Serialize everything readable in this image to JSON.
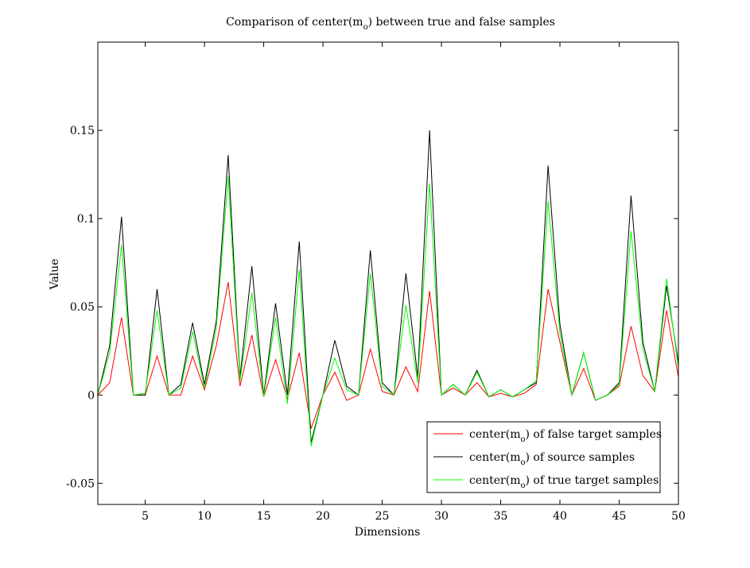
{
  "chart_data": {
    "type": "line",
    "title": {
      "before": "Comparison of center(m",
      "sub": "o",
      "after": ") between true and false samples"
    },
    "xlabel": "Dimensions",
    "ylabel": "Value",
    "xlim": [
      1,
      50
    ],
    "ylim": [
      -0.062,
      0.2
    ],
    "x_ticks": [
      5,
      10,
      15,
      20,
      25,
      30,
      35,
      40,
      45,
      50
    ],
    "y_ticks": [
      -0.05,
      0,
      0.05,
      0.1,
      0.15
    ],
    "y_tick_labels": [
      "-0.05",
      "0",
      "0.05",
      "0.1",
      "0.15"
    ],
    "grid": false,
    "legend_position": "bottom-right",
    "legend_items": [
      {
        "before": "center(m",
        "sub": "o",
        "after": ") of false target samples"
      },
      {
        "before": "center(m",
        "sub": "o",
        "after": ") of source samples"
      },
      {
        "before": "center(m",
        "sub": "o",
        "after": ") of true target samples"
      }
    ],
    "x": [
      1,
      2,
      3,
      4,
      5,
      6,
      7,
      8,
      9,
      10,
      11,
      12,
      13,
      14,
      15,
      16,
      17,
      18,
      19,
      20,
      21,
      22,
      23,
      24,
      25,
      26,
      27,
      28,
      29,
      30,
      31,
      32,
      33,
      34,
      35,
      36,
      37,
      38,
      39,
      40,
      41,
      42,
      43,
      44,
      45,
      46,
      47,
      48,
      49,
      50
    ],
    "series": [
      {
        "color": "#ff0000",
        "values": [
          0,
          0.007,
          0.044,
          0,
          0,
          0.022,
          0,
          0,
          0.022,
          0.003,
          0.028,
          0.064,
          0.005,
          0.034,
          -0.001,
          0.02,
          -0.002,
          0.024,
          -0.019,
          0,
          0.013,
          -0.003,
          0,
          0.026,
          0.002,
          0,
          0.016,
          0.002,
          0.059,
          0,
          0.004,
          0,
          0.007,
          -0.001,
          0.001,
          -0.001,
          0.001,
          0.006,
          0.06,
          0.03,
          0,
          0.015,
          -0.003,
          0,
          0.005,
          0.039,
          0.011,
          0.002,
          0.048,
          0.01
        ]
      },
      {
        "color": "#000000",
        "values": [
          0,
          0.028,
          0.101,
          0,
          0,
          0.06,
          0,
          0.006,
          0.041,
          0.006,
          0.042,
          0.136,
          0.01,
          0.073,
          0,
          0.052,
          0,
          0.087,
          -0.027,
          0,
          0.031,
          0.005,
          0,
          0.082,
          0.007,
          0,
          0.069,
          0.01,
          0.15,
          0,
          0.006,
          0,
          0.014,
          -0.001,
          0.003,
          -0.001,
          0.003,
          0.007,
          0.13,
          0.04,
          0,
          0.024,
          -0.003,
          0,
          0.007,
          0.113,
          0.03,
          0.002,
          0.062,
          0.018
        ]
      },
      {
        "color": "#00ff00",
        "values": [
          0,
          0.024,
          0.085,
          0,
          0.001,
          0.048,
          0,
          0.004,
          0.036,
          0.004,
          0.038,
          0.124,
          0.008,
          0.058,
          -0.001,
          0.044,
          -0.005,
          0.071,
          -0.029,
          0,
          0.021,
          0.003,
          0,
          0.069,
          0.005,
          0,
          0.051,
          0.007,
          0.12,
          0,
          0.006,
          0,
          0.013,
          -0.001,
          0.003,
          -0.001,
          0.003,
          0.008,
          0.11,
          0.035,
          0,
          0.024,
          -0.003,
          0,
          0.006,
          0.093,
          0.026,
          0.002,
          0.066,
          0.015
        ]
      }
    ]
  }
}
